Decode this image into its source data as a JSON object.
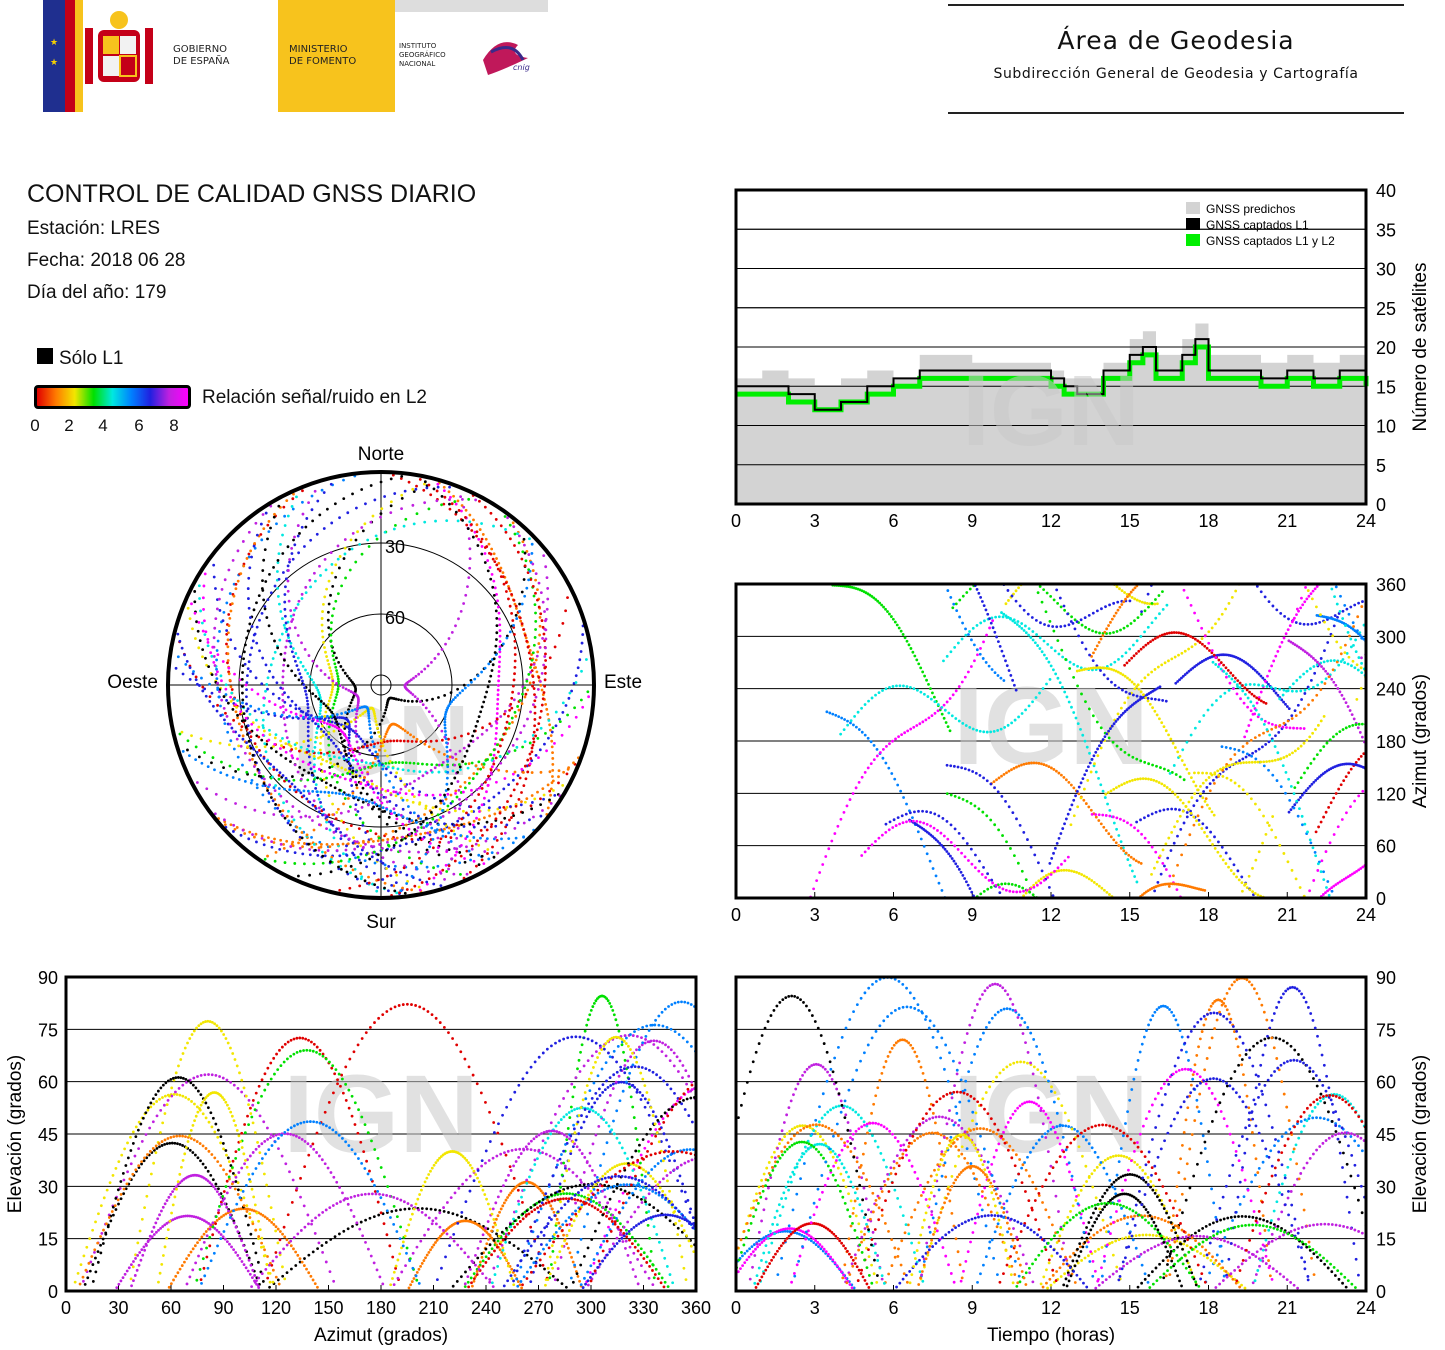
{
  "header": {
    "gov_line1": "GOBIERNO",
    "gov_line2": "DE ESPAÑA",
    "min_line1": "MINISTERIO",
    "min_line2": "DE FOMENTO",
    "inst_line1": "INSTITUTO",
    "inst_line2": "GEOGRÁFICO",
    "inst_line3": "NACIONAL",
    "cnig_text": "cnig",
    "area_title": "Área de Geodesia",
    "area_subtitle": "Subdirección General de Geodesia y Cartografía"
  },
  "info": {
    "title": "CONTROL DE CALIDAD GNSS DIARIO",
    "station": "Estación: LRES",
    "date": "Fecha: 2018 06 28",
    "doy": "Día del año: 179"
  },
  "legend": {
    "l1_only": "Sólo L1",
    "snr_label": "Relación señal/ruido en L2",
    "snr_ticks": [
      "0",
      "2",
      "4",
      "6",
      "8"
    ]
  },
  "colors": {
    "predicted": "#d3d3d3",
    "l1": "#000000",
    "l1l2": "#00ee00",
    "grid": "#000000",
    "watermark": "#c8c8c8"
  },
  "watermark": "IGN",
  "chart_data": [
    {
      "id": "satellite-count",
      "type": "area",
      "xlabel": "",
      "ylabel": "Número de satélites",
      "xlim": [
        0,
        24
      ],
      "ylim": [
        0,
        40
      ],
      "xticks": [
        "0",
        "3",
        "6",
        "9",
        "12",
        "15",
        "18",
        "21",
        "24"
      ],
      "yticks": [
        "0",
        "5",
        "10",
        "15",
        "20",
        "25",
        "30",
        "35",
        "40"
      ],
      "y_axis_side": "right",
      "grid": true,
      "legend_position": "top-right",
      "x": [
        0,
        1,
        2,
        3,
        4,
        5,
        6,
        7,
        8,
        9,
        10,
        11,
        12,
        12.5,
        13,
        14,
        15,
        15.5,
        16,
        17,
        17.5,
        18,
        19,
        20,
        21,
        22,
        23,
        24
      ],
      "series": [
        {
          "name": "GNSS predichos",
          "values": [
            16,
            17,
            16,
            15,
            16,
            17,
            16,
            19,
            19,
            18,
            18,
            18,
            17,
            16,
            16,
            18,
            21,
            22,
            19,
            21,
            23,
            19,
            19,
            18,
            19,
            18,
            19,
            17
          ]
        },
        {
          "name": "GNSS captados L1",
          "values": [
            15,
            15,
            14,
            12,
            13,
            15,
            16,
            17,
            17,
            17,
            17,
            17,
            16,
            15,
            14,
            17,
            19,
            20,
            17,
            19,
            21,
            17,
            17,
            16,
            17,
            16,
            17,
            15
          ]
        },
        {
          "name": "GNSS captados L1 y L2",
          "values": [
            14,
            14,
            13,
            12,
            13,
            14,
            15,
            16,
            16,
            16,
            16,
            16,
            15,
            14,
            14,
            16,
            18,
            19,
            16,
            18,
            20,
            16,
            16,
            15,
            16,
            15,
            16,
            15
          ]
        }
      ]
    },
    {
      "id": "azimuth-time",
      "type": "scatter",
      "xlabel": "",
      "ylabel": "Azimut (grados)",
      "xlim": [
        0,
        24
      ],
      "ylim": [
        0,
        360
      ],
      "xticks": [
        "0",
        "3",
        "6",
        "9",
        "12",
        "15",
        "18",
        "21",
        "24"
      ],
      "yticks": [
        "0",
        "60",
        "120",
        "180",
        "240",
        "300",
        "360"
      ],
      "y_axis_side": "right",
      "grid": true
    },
    {
      "id": "skyplot",
      "type": "scatter",
      "directions": {
        "north": "Norte",
        "south": "Sur",
        "east": "Este",
        "west": "Oeste"
      },
      "rings": [
        "30",
        "60"
      ],
      "grid": true
    },
    {
      "id": "elevation-azimuth",
      "type": "scatter",
      "xlabel": "Azimut (grados)",
      "ylabel": "Elevación (grados)",
      "xlim": [
        0,
        360
      ],
      "ylim": [
        0,
        90
      ],
      "xticks": [
        "0",
        "30",
        "60",
        "90",
        "120",
        "150",
        "180",
        "210",
        "240",
        "270",
        "300",
        "330",
        "360"
      ],
      "yticks": [
        "0",
        "15",
        "30",
        "45",
        "60",
        "75",
        "90"
      ],
      "y_axis_side": "left",
      "grid": true
    },
    {
      "id": "elevation-time",
      "type": "scatter",
      "xlabel": "Tiempo (horas)",
      "ylabel": "Elevación (grados)",
      "xlim": [
        0,
        24
      ],
      "ylim": [
        0,
        90
      ],
      "xticks": [
        "0",
        "3",
        "6",
        "9",
        "12",
        "15",
        "18",
        "21",
        "24"
      ],
      "yticks": [
        "0",
        "15",
        "30",
        "45",
        "60",
        "75",
        "90"
      ],
      "y_axis_side": "right",
      "grid": true
    }
  ]
}
